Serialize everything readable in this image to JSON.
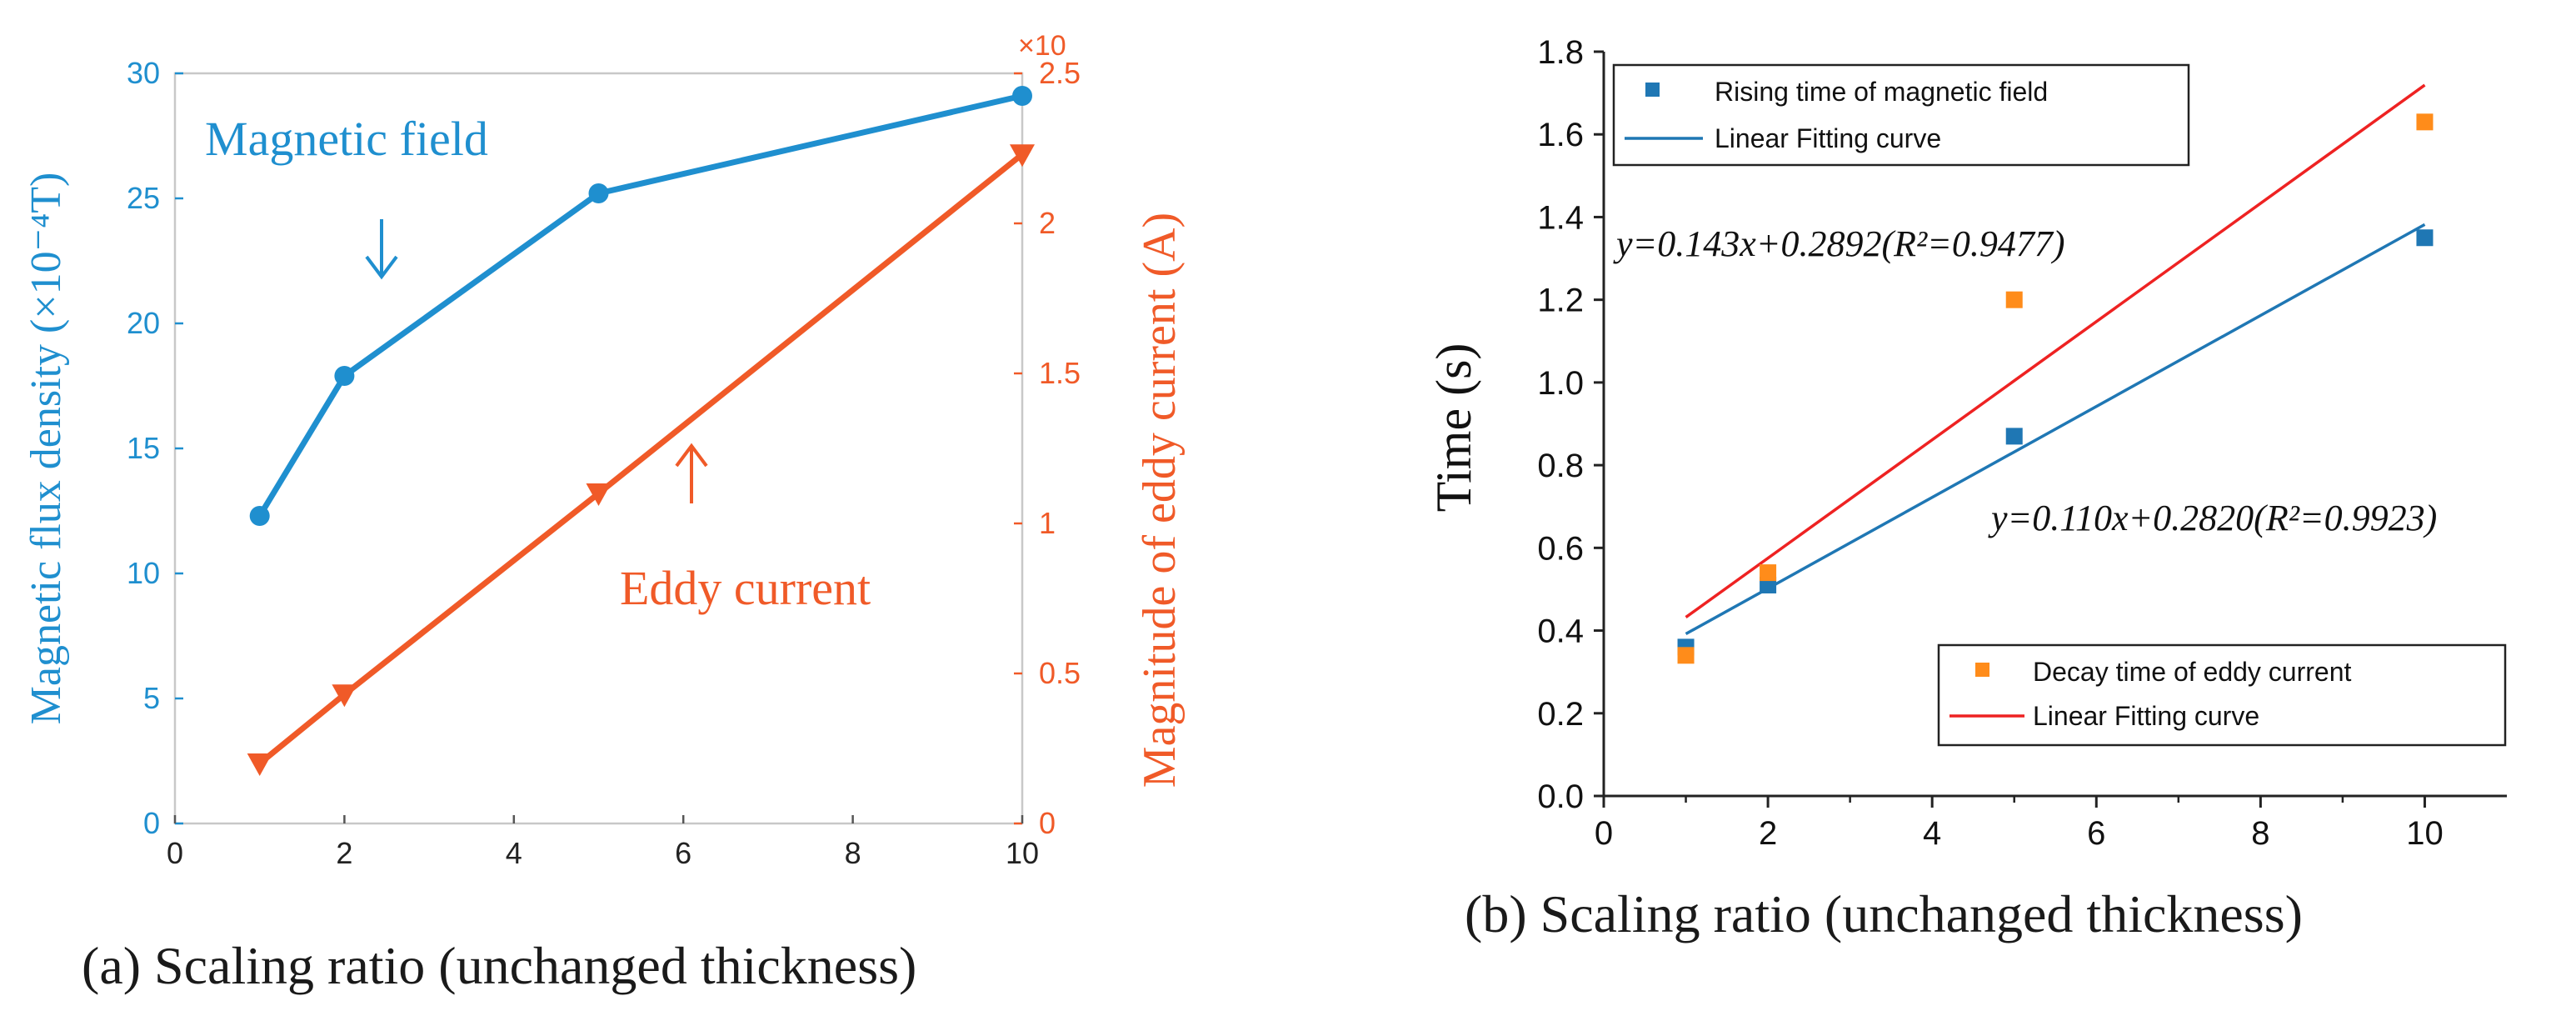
{
  "chart_data": [
    {
      "type": "line",
      "caption": "(a) Scaling ratio (unchanged thickness)",
      "x": [
        1,
        2,
        5,
        10
      ],
      "xlim": [
        0,
        10
      ],
      "xticks": [
        "0",
        "2",
        "4",
        "6",
        "8",
        "10"
      ],
      "left_axis": {
        "label": "Magnetic flux density (×10⁻⁴T)",
        "ylim": [
          0,
          30
        ],
        "ticks": [
          "0",
          "5",
          "10",
          "15",
          "20",
          "25",
          "30"
        ],
        "color": "#1f8fcf"
      },
      "right_axis": {
        "label": "Magnitude of  eddy current (A)",
        "ylim": [
          0,
          25
        ],
        "ticks": [
          "0",
          "0.5",
          "1",
          "1.5",
          "2",
          "2.5"
        ],
        "exponent": "×10",
        "color": "#f05a28"
      },
      "series": [
        {
          "name": "Magnetic field",
          "axis": "left",
          "marker": "circle",
          "values": [
            12.3,
            17.9,
            25.2,
            29.1
          ]
        },
        {
          "name": "Eddy current",
          "axis": "right",
          "marker": "triangle-down",
          "values": [
            2.0,
            4.3,
            11.0,
            22.3
          ]
        }
      ],
      "annotations": [
        {
          "text": "Magnetic field",
          "arrow": "down"
        },
        {
          "text": "Eddy current",
          "arrow": "up"
        }
      ]
    },
    {
      "type": "scatter",
      "caption": "(b) Scaling ratio (unchanged thickness)",
      "xlabel": "",
      "ylabel": "Time (s)",
      "xlim": [
        0,
        11
      ],
      "ylim": [
        0,
        1.8
      ],
      "xticks": [
        "0",
        "2",
        "4",
        "6",
        "8",
        "10"
      ],
      "yticks": [
        "0.0",
        "0.2",
        "0.4",
        "0.6",
        "0.8",
        "1.0",
        "1.2",
        "1.4",
        "1.6",
        "1.8"
      ],
      "series": [
        {
          "name": "Rising time of magnetic field",
          "color": "#1f77b4",
          "x": [
            1,
            2,
            5,
            10
          ],
          "values": [
            0.36,
            0.51,
            0.87,
            1.35
          ]
        },
        {
          "name": "Decay time of eddy current",
          "color": "#ff8c1a",
          "x": [
            1,
            2,
            5,
            10
          ],
          "values": [
            0.34,
            0.54,
            1.2,
            1.63
          ]
        }
      ],
      "fits": [
        {
          "name": "Linear Fitting curve",
          "color": "#1f77b4",
          "slope": 0.11,
          "intercept": 0.282,
          "xrange": [
            1,
            10
          ],
          "equation": "y=0.110x+0.2820(R²=0.9923)"
        },
        {
          "name": "Linear Fitting curve",
          "color": "#ee2222",
          "slope": 0.143,
          "intercept": 0.2892,
          "xrange": [
            1,
            10
          ],
          "equation": "y=0.143x+0.2892(R²=0.9477)"
        }
      ]
    }
  ]
}
